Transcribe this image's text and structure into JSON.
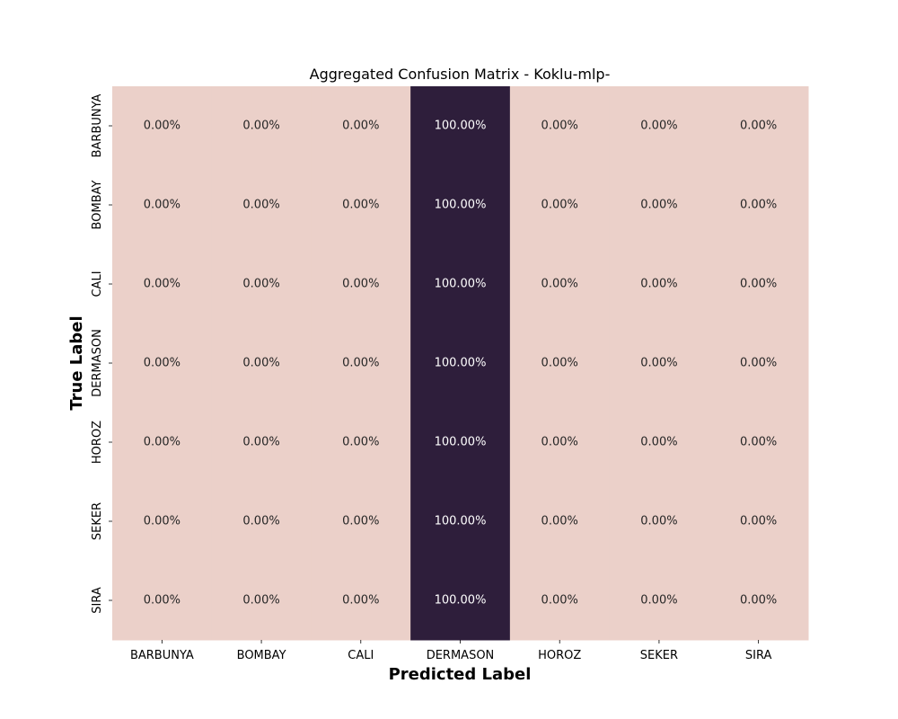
{
  "chart_data": {
    "type": "heatmap",
    "title": "Aggregated Confusion Matrix - Koklu-mlp-",
    "xlabel": "Predicted Label",
    "ylabel": "True Label",
    "x_categories": [
      "BARBUNYA",
      "BOMBAY",
      "CALI",
      "DERMASON",
      "HOROZ",
      "SEKER",
      "SIRA"
    ],
    "y_categories": [
      "BARBUNYA",
      "BOMBAY",
      "CALI",
      "DERMASON",
      "HOROZ",
      "SEKER",
      "SIRA"
    ],
    "values": [
      [
        0,
        0,
        0,
        100,
        0,
        0,
        0
      ],
      [
        0,
        0,
        0,
        100,
        0,
        0,
        0
      ],
      [
        0,
        0,
        0,
        100,
        0,
        0,
        0
      ],
      [
        0,
        0,
        0,
        100,
        0,
        0,
        0
      ],
      [
        0,
        0,
        0,
        100,
        0,
        0,
        0
      ],
      [
        0,
        0,
        0,
        100,
        0,
        0,
        0
      ],
      [
        0,
        0,
        0,
        100,
        0,
        0,
        0
      ]
    ],
    "value_format": "percent_2dp",
    "colorbar": false,
    "colors": {
      "low": "#ebd0c9",
      "high": "#2e1e3b",
      "text_on_low": "#262626",
      "text_on_high": "#ffffff"
    }
  }
}
